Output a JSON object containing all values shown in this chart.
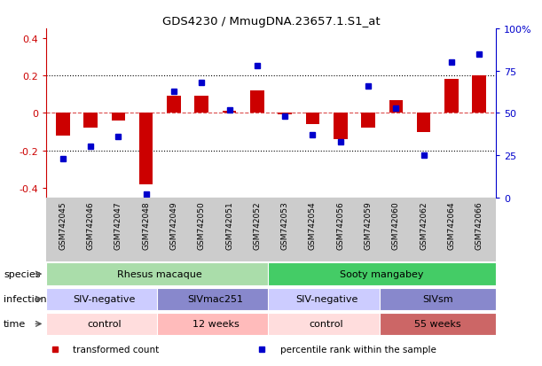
{
  "title": "GDS4230 / MmugDNA.23657.1.S1_at",
  "samples": [
    "GSM742045",
    "GSM742046",
    "GSM742047",
    "GSM742048",
    "GSM742049",
    "GSM742050",
    "GSM742051",
    "GSM742052",
    "GSM742053",
    "GSM742054",
    "GSM742056",
    "GSM742059",
    "GSM742060",
    "GSM742062",
    "GSM742064",
    "GSM742066"
  ],
  "transformed_count": [
    -0.12,
    -0.08,
    -0.04,
    -0.38,
    0.09,
    0.09,
    0.01,
    0.12,
    -0.01,
    -0.06,
    -0.14,
    -0.08,
    0.07,
    -0.1,
    0.18,
    0.2
  ],
  "percentile_rank": [
    23,
    30,
    36,
    2,
    63,
    68,
    52,
    78,
    48,
    37,
    33,
    66,
    53,
    25,
    80,
    85
  ],
  "bar_color": "#cc0000",
  "dot_color": "#0000cc",
  "ylim_left": [
    -0.45,
    0.45
  ],
  "ylim_right": [
    0,
    100
  ],
  "left_yticks": [
    -0.4,
    -0.2,
    0.0,
    0.2,
    0.4
  ],
  "left_yticklabels": [
    "-0.4",
    "-0.2",
    "0",
    "0.2",
    "0.4"
  ],
  "right_yticks": [
    0,
    25,
    50,
    75,
    100
  ],
  "right_yticklabels": [
    "0",
    "25",
    "50",
    "75",
    "100%"
  ],
  "hlines": [
    0.2,
    0.0,
    -0.2
  ],
  "species_row": {
    "label": "species",
    "groups": [
      {
        "text": "Rhesus macaque",
        "start": 0,
        "end": 8,
        "color": "#aaddaa"
      },
      {
        "text": "Sooty mangabey",
        "start": 8,
        "end": 16,
        "color": "#44cc66"
      }
    ]
  },
  "infection_row": {
    "label": "infection",
    "groups": [
      {
        "text": "SIV-negative",
        "start": 0,
        "end": 4,
        "color": "#ccccff"
      },
      {
        "text": "SIVmac251",
        "start": 4,
        "end": 8,
        "color": "#8888cc"
      },
      {
        "text": "SIV-negative",
        "start": 8,
        "end": 12,
        "color": "#ccccff"
      },
      {
        "text": "SIVsm",
        "start": 12,
        "end": 16,
        "color": "#8888cc"
      }
    ]
  },
  "time_row": {
    "label": "time",
    "groups": [
      {
        "text": "control",
        "start": 0,
        "end": 4,
        "color": "#ffdddd"
      },
      {
        "text": "12 weeks",
        "start": 4,
        "end": 8,
        "color": "#ffbbbb"
      },
      {
        "text": "control",
        "start": 8,
        "end": 12,
        "color": "#ffdddd"
      },
      {
        "text": "55 weeks",
        "start": 12,
        "end": 16,
        "color": "#cc6666"
      }
    ]
  },
  "legend": [
    {
      "label": "transformed count",
      "color": "#cc0000"
    },
    {
      "label": "percentile rank within the sample",
      "color": "#0000cc"
    }
  ],
  "tick_color_left": "#cc0000",
  "tick_color_right": "#0000cc",
  "bg_color": "#ffffff",
  "xtick_bg": "#cccccc"
}
